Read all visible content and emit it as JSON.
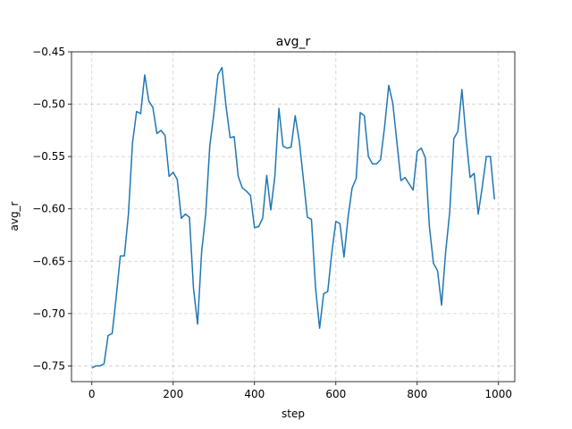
{
  "chart_data": {
    "type": "line",
    "title": "avg_r",
    "xlabel": "step",
    "ylabel": "avg_r",
    "xlim": [
      -50,
      1040
    ],
    "ylim": [
      -0.765,
      -0.45
    ],
    "xticks": [
      0,
      200,
      400,
      600,
      800,
      1000
    ],
    "xtick_labels": [
      "0",
      "200",
      "400",
      "600",
      "800",
      "1000"
    ],
    "yticks": [
      -0.75,
      -0.7,
      -0.65,
      -0.6,
      -0.55,
      -0.5,
      -0.45
    ],
    "ytick_labels": [
      "−0.75",
      "−0.70",
      "−0.65",
      "−0.60",
      "−0.55",
      "−0.50",
      "−0.45"
    ],
    "grid": true,
    "color": "#1f77b4",
    "series": [
      {
        "x": [
          0,
          10,
          20,
          30,
          40,
          50,
          60,
          70,
          80,
          90,
          100,
          110,
          120,
          130,
          140,
          150,
          160,
          170,
          180,
          190,
          200,
          210,
          220,
          230,
          240,
          250,
          260,
          270,
          280,
          290,
          300,
          310,
          320,
          330,
          340,
          350,
          360,
          370,
          380,
          390,
          400,
          410,
          420,
          430,
          440,
          450,
          460,
          470,
          480,
          490,
          500,
          510,
          520,
          530,
          540,
          550,
          560,
          570,
          580,
          590,
          600,
          610,
          620,
          630,
          640,
          650,
          660,
          670,
          680,
          690,
          700,
          710,
          720,
          730,
          740,
          750,
          760,
          770,
          780,
          790,
          800,
          810,
          820,
          830,
          840,
          850,
          860,
          870,
          880,
          890,
          900,
          910,
          920,
          930,
          940,
          950,
          960,
          970,
          980,
          990
        ],
        "values": [
          -0.752,
          -0.75,
          -0.75,
          -0.748,
          -0.721,
          -0.719,
          -0.684,
          -0.645,
          -0.645,
          -0.605,
          -0.537,
          -0.507,
          -0.509,
          -0.472,
          -0.497,
          -0.503,
          -0.528,
          -0.525,
          -0.53,
          -0.569,
          -0.565,
          -0.572,
          -0.609,
          -0.605,
          -0.608,
          -0.676,
          -0.71,
          -0.641,
          -0.605,
          -0.54,
          -0.509,
          -0.472,
          -0.465,
          -0.502,
          -0.532,
          -0.531,
          -0.569,
          -0.58,
          -0.583,
          -0.587,
          -0.618,
          -0.617,
          -0.609,
          -0.568,
          -0.601,
          -0.569,
          -0.504,
          -0.54,
          -0.542,
          -0.541,
          -0.511,
          -0.535,
          -0.571,
          -0.608,
          -0.61,
          -0.675,
          -0.714,
          -0.681,
          -0.679,
          -0.642,
          -0.612,
          -0.614,
          -0.646,
          -0.608,
          -0.58,
          -0.571,
          -0.508,
          -0.511,
          -0.55,
          -0.557,
          -0.557,
          -0.553,
          -0.521,
          -0.482,
          -0.499,
          -0.536,
          -0.573,
          -0.57,
          -0.576,
          -0.582,
          -0.545,
          -0.542,
          -0.551,
          -0.617,
          -0.652,
          -0.659,
          -0.692,
          -0.641,
          -0.603,
          -0.533,
          -0.526,
          -0.486,
          -0.531,
          -0.57,
          -0.566,
          -0.605,
          -0.579,
          -0.55,
          -0.55,
          -0.591
        ]
      }
    ]
  }
}
